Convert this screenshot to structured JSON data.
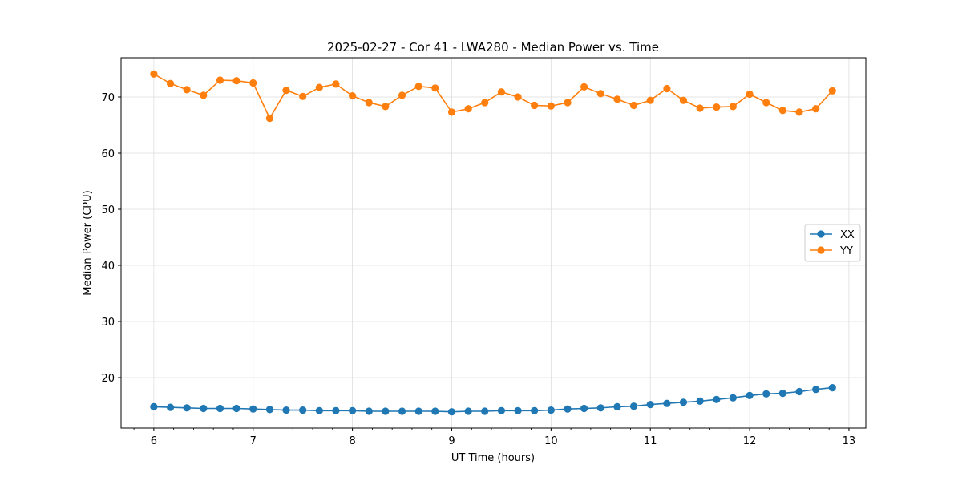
{
  "chart_data": {
    "type": "line",
    "title": "2025-02-27 - Cor 41 - LWA280 - Median Power vs. Time",
    "xlabel": "UT Time (hours)",
    "ylabel": "Median Power (CPU)",
    "xlim": [
      5.67,
      13.17
    ],
    "ylim": [
      11.0,
      77.0
    ],
    "xticks": [
      6,
      7,
      8,
      9,
      10,
      11,
      12,
      13
    ],
    "xtick_labels": [
      "6",
      "7",
      "8",
      "9",
      "10",
      "11",
      "12",
      "13"
    ],
    "yticks": [
      20,
      30,
      40,
      50,
      60,
      70
    ],
    "ytick_labels": [
      "20",
      "30",
      "40",
      "50",
      "60",
      "70"
    ],
    "grid": true,
    "legend_position": "center-right",
    "x": [
      6.0,
      6.167,
      6.333,
      6.5,
      6.667,
      6.833,
      7.0,
      7.167,
      7.333,
      7.5,
      7.667,
      7.833,
      8.0,
      8.167,
      8.333,
      8.5,
      8.667,
      8.833,
      9.0,
      9.167,
      9.333,
      9.5,
      9.667,
      9.833,
      10.0,
      10.167,
      10.333,
      10.5,
      10.667,
      10.833,
      11.0,
      11.167,
      11.333,
      11.5,
      11.667,
      11.833,
      12.0,
      12.167,
      12.333,
      12.5,
      12.667,
      12.833
    ],
    "series": [
      {
        "name": "XX",
        "color": "#1f77b4",
        "values": [
          14.8,
          14.7,
          14.6,
          14.5,
          14.5,
          14.5,
          14.4,
          14.3,
          14.2,
          14.2,
          14.1,
          14.1,
          14.1,
          14.0,
          14.0,
          14.0,
          14.0,
          14.0,
          13.9,
          14.0,
          14.0,
          14.1,
          14.1,
          14.1,
          14.2,
          14.4,
          14.5,
          14.6,
          14.8,
          14.9,
          15.2,
          15.4,
          15.6,
          15.8,
          16.1,
          16.4,
          16.8,
          17.1,
          17.2,
          17.5,
          17.9,
          18.2
        ]
      },
      {
        "name": "YY",
        "color": "#ff7f0e",
        "values": [
          74.1,
          72.4,
          71.3,
          70.3,
          73.0,
          72.9,
          72.5,
          66.2,
          71.2,
          70.1,
          71.7,
          72.3,
          70.2,
          69.0,
          68.3,
          70.3,
          71.9,
          71.6,
          67.3,
          67.9,
          69.0,
          70.9,
          70.0,
          68.5,
          68.4,
          69.0,
          71.8,
          70.6,
          69.6,
          68.5,
          69.4,
          71.5,
          69.4,
          68.0,
          68.2,
          68.3,
          70.5,
          69.0,
          67.6,
          67.3,
          67.9,
          71.1
        ]
      }
    ]
  }
}
